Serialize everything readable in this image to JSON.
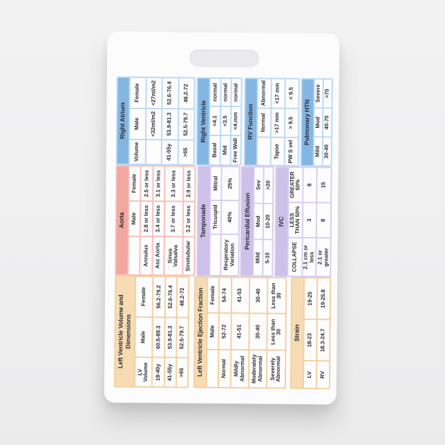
{
  "colors": {
    "page_bg": "#efeff0",
    "card_bg": "#fcfcfd",
    "text": "#2b2b33",
    "themes": {
      "tan": {
        "title": "#f7dcb3",
        "border": "#f3d0a1"
      },
      "salmon": {
        "title": "#f2a7a1",
        "border": "#f7c0ba"
      },
      "lavender": {
        "title": "#cdc0e9",
        "border": "#d8cdf0"
      },
      "blue": {
        "title": "#84b6e3",
        "border": "#bdd9f3"
      }
    }
  },
  "badge": {
    "columns": [
      {
        "name": "left-ventricle",
        "tables": [
          {
            "theme": "tan",
            "title": "Left Ventricle Volume and Dimensions",
            "header": [
              "LV Volume",
              "Male",
              "Female"
            ],
            "rows": [
              [
                "18-40y",
                "60.5-89.3",
                "56.2-79.2"
              ],
              [
                "41-55y",
                "53.9-81.3",
                "52.6-76.4"
              ],
              [
                ">65",
                "52.5-79.7",
                "48.2-72"
              ]
            ]
          },
          {
            "theme": "tan",
            "title": "Left Ventricle Ejection Fraction",
            "header": [
              "",
              "Male",
              "Female"
            ],
            "rows": [
              [
                "Normal",
                "52-72",
                "54-74"
              ],
              [
                "Mildly Abnormal",
                "41-51",
                "41-53"
              ],
              [
                "Moderately Abnormal",
                "30-40",
                "30-40"
              ],
              [
                "Severely Abnormal",
                "Less than 30",
                "Less than 30"
              ]
            ]
          },
          {
            "theme": "tan",
            "title": "Strain",
            "header": null,
            "rows": [
              [
                "LV",
                "18-23",
                "19-25"
              ],
              [
                "RV",
                "18.3-24.7",
                "19-25.8"
              ]
            ]
          }
        ]
      },
      {
        "name": "aorta-and-pericardium",
        "tables": [
          {
            "theme": "salmon",
            "title": "Aorta",
            "header": [
              "",
              "Male",
              "Female"
            ],
            "rows": [
              [
                "Annulus",
                "2.8 or less",
                "2.5 or less"
              ],
              [
                "Asc Aorta",
                "3.4 or less",
                "3.1 or less"
              ],
              [
                "Sinus Valsalva",
                "3.7 or less",
                "3.3 or less"
              ],
              [
                "Sinotubular",
                "3.2 or less",
                "2.9 or less"
              ]
            ]
          },
          {
            "theme": "lavender",
            "title": "Tamponade",
            "header": [
              "",
              "Tricuspid",
              "Mitral"
            ],
            "rows": [
              [
                "Respiratory Variation",
                "40%",
                "25%"
              ]
            ]
          },
          {
            "theme": "lavender",
            "title": "Pericardial Effusion",
            "header": [
              "Mild",
              "Mod",
              "Sev"
            ],
            "rows": [
              [
                "5-10",
                "10-20",
                ">20"
              ]
            ]
          },
          {
            "theme": "lavender",
            "title": "IVC",
            "header": [
              "COLLAPSE",
              "LESS THAN 50%",
              "GREATER 50%"
            ],
            "rows": [
              [
                "2.1 cm or less",
                "3",
                "8"
              ],
              [
                "2.1 or greater",
                "8",
                "15"
              ]
            ]
          }
        ]
      },
      {
        "name": "right-heart",
        "tables": [
          {
            "theme": "blue",
            "title": "Right Atrium",
            "header": [
              "Volume",
              "Male",
              "Female"
            ],
            "rows": [
              [
                "",
                "<32ml/m2",
                "<27ml/m2"
              ],
              [
                "41-55y",
                "53.9-81.3",
                "52.6-76.4"
              ],
              [
                ">65",
                "52.5-79.7",
                "48.2-72"
              ]
            ]
          },
          {
            "theme": "blue",
            "title": "Right Ventricle",
            "header": null,
            "rows": [
              [
                "Basal",
                "<4.1",
                "normal"
              ],
              [
                "Mid",
                "<3.5",
                "normal"
              ],
              [
                "Free Wall",
                "<4.mm",
                "normal"
              ]
            ]
          },
          {
            "theme": "blue",
            "title": "RV Function",
            "header": [
              "",
              "Normal",
              "Abnormal"
            ],
            "rows": [
              [
                "Tapse",
                ">17 mm",
                "<17 mm"
              ],
              [
                "PW S vel",
                "> 9.5",
                "< 9.5"
              ]
            ]
          },
          {
            "theme": "blue",
            "title": "Pulmonary HTN",
            "header": [
              "Mild",
              "Mod",
              "Severe"
            ],
            "rows": [
              [
                "30-40",
                "40-70",
                ">70"
              ]
            ]
          }
        ]
      }
    ]
  }
}
